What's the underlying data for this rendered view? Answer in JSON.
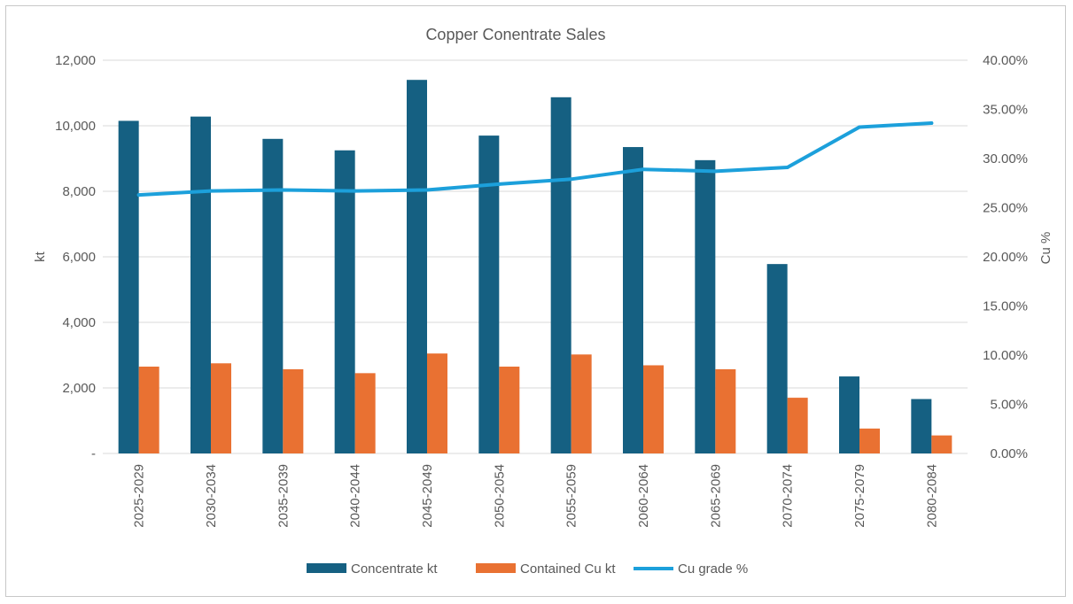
{
  "chart_data": {
    "type": "bar",
    "title": "Copper Conentrate Sales",
    "xlabel": "",
    "ylabel": "kt",
    "y2label": "Cu %",
    "ylim": [
      0,
      12000
    ],
    "y2lim": [
      0,
      40
    ],
    "yticks": [
      "-",
      "2,000",
      "4,000",
      "6,000",
      "8,000",
      "10,000",
      "12,000"
    ],
    "y2ticks": [
      "0.00%",
      "5.00%",
      "10.00%",
      "15.00%",
      "20.00%",
      "25.00%",
      "30.00%",
      "35.00%",
      "40.00%"
    ],
    "categories": [
      "2025-2029",
      "2030-2034",
      "2035-2039",
      "2040-2044",
      "2045-2049",
      "2050-2054",
      "2055-2059",
      "2060-2064",
      "2065-2069",
      "2070-2074",
      "2075-2079",
      "2080-2084"
    ],
    "series": [
      {
        "name": "Concentrate kt",
        "type": "bar",
        "axis": "left",
        "color": "#156082",
        "values": [
          10150,
          10280,
          9600,
          9250,
          11400,
          9700,
          10870,
          9350,
          8950,
          5780,
          2350,
          1660
        ]
      },
      {
        "name": "Contained Cu kt",
        "type": "bar",
        "axis": "left",
        "color": "#E97132",
        "values": [
          2650,
          2750,
          2570,
          2450,
          3050,
          2650,
          3020,
          2690,
          2570,
          1700,
          760,
          550
        ]
      },
      {
        "name": "Cu grade %",
        "type": "line",
        "axis": "right",
        "color": "#1CA0DB",
        "values": [
          26.3,
          26.7,
          26.8,
          26.7,
          26.8,
          27.4,
          27.9,
          28.9,
          28.7,
          29.1,
          33.2,
          33.6
        ]
      }
    ],
    "legend_position": "bottom",
    "grid": true
  }
}
